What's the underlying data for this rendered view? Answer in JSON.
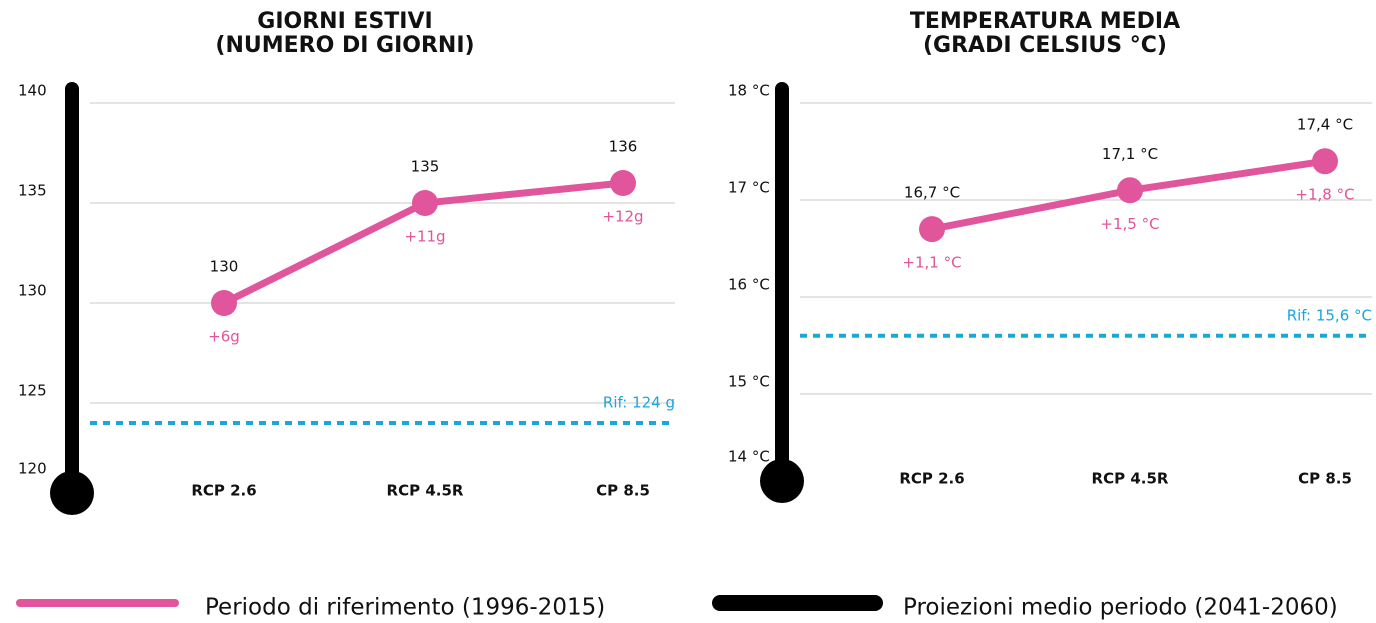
{
  "chart_data": [
    {
      "type": "line",
      "title": "GIORNI ESTIVI",
      "subtitle": "(NUMERO DI GIORNI)",
      "categories": [
        "RCP 2.6",
        "RCP 4.5R",
        "CP 8.5"
      ],
      "ylim": [
        120,
        140
      ],
      "yticks": [
        140,
        135,
        130,
        125,
        120
      ],
      "grid": true,
      "series": [
        {
          "color": "#e0559b",
          "values": [
            130,
            135,
            136
          ],
          "delta_labels": [
            "+6g",
            "+11g",
            "+12g"
          ]
        }
      ],
      "reference": {
        "value": 124,
        "label": "Rif: 124 g",
        "color": "#1aa7dc"
      }
    },
    {
      "type": "line",
      "title": "TEMPERATURA MEDIA",
      "subtitle": "(GRADI CELSIUS °C)",
      "categories": [
        "RCP 2.6",
        "RCP 4.5R",
        "CP 8.5"
      ],
      "ylim": [
        14,
        18
      ],
      "yticks": [
        {
          "value": 18,
          "label": "18 °C"
        },
        {
          "value": 17,
          "label": "17 °C"
        },
        {
          "value": 16,
          "label": "16 °C"
        },
        {
          "value": 15,
          "label": "15 °C"
        },
        {
          "value": 14,
          "label": "14 °C"
        }
      ],
      "grid": true,
      "series": [
        {
          "color": "#e0559b",
          "values": [
            16.7,
            17.1,
            17.4
          ],
          "value_labels": [
            "16,7 °C",
            "17,1 °C",
            "17,4 °C"
          ],
          "delta_labels": [
            "+1,1 °C",
            "+1,5 °C",
            "+1,8 °C"
          ]
        }
      ],
      "reference": {
        "value": 15.6,
        "label": "Rif: 15,6 °C",
        "color": "#1aa7dc"
      }
    }
  ],
  "legend": [
    {
      "label": "Periodo di riferimento (1996-2015)",
      "color": "#e0559b"
    },
    {
      "label": "Proiezioni medio periodo (2041-2060)",
      "color": "#000000"
    }
  ]
}
